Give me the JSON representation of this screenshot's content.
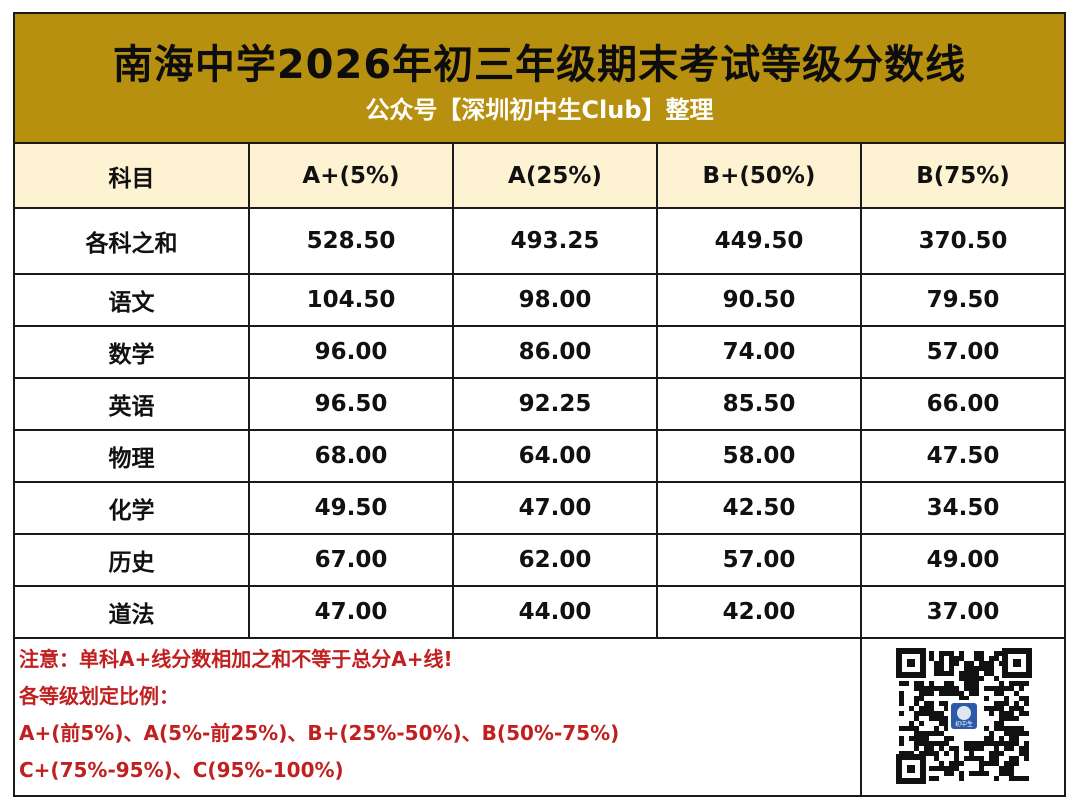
{
  "header": {
    "title": "南海中学2026年初三年级期末考试等级分数线",
    "subtitle": "公众号【深圳初中生Club】整理"
  },
  "table": {
    "columns": [
      "科目",
      "A+(5%)",
      "A(25%)",
      "B+(50%)",
      "B(75%)"
    ],
    "rows": [
      [
        "各科之和",
        "528.50",
        "493.25",
        "449.50",
        "370.50"
      ],
      [
        "语文",
        "104.50",
        "98.00",
        "90.50",
        "79.50"
      ],
      [
        "数学",
        "96.00",
        "86.00",
        "74.00",
        "57.00"
      ],
      [
        "英语",
        "96.50",
        "92.25",
        "85.50",
        "66.00"
      ],
      [
        "物理",
        "68.00",
        "64.00",
        "58.00",
        "47.50"
      ],
      [
        "化学",
        "49.50",
        "47.00",
        "42.50",
        "34.50"
      ],
      [
        "历史",
        "67.00",
        "62.00",
        "57.00",
        "49.00"
      ],
      [
        "道法",
        "47.00",
        "44.00",
        "42.00",
        "37.00"
      ]
    ]
  },
  "notes": [
    "注意：单科A+线分数相加之和不等于总分A+线!",
    "各等级划定比例：",
    "A+(前5%)、A(5%-前25%)、B+(25%-50%)、B(50%-75%)",
    "C+(75%-95%)、C(95%-100%)"
  ],
  "qr": {
    "center_label": "初中生"
  },
  "colors": {
    "header_bg": "#b8900f",
    "header_row_bg": "#fdf2d2",
    "note_text": "#c0201f",
    "subtitle_text": "#ffffff"
  }
}
